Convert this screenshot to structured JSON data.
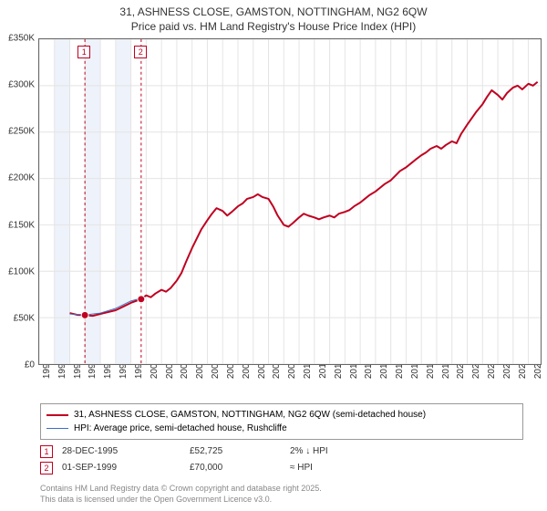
{
  "title": {
    "line1": "31, ASHNESS CLOSE, GAMSTON, NOTTINGHAM, NG2 6QW",
    "line2": "Price paid vs. HM Land Registry's House Price Index (HPI)",
    "fontsize": 12,
    "color": "#333333"
  },
  "chart": {
    "type": "line",
    "background_color": "#ffffff",
    "border_color": "#666666",
    "grid_color": "#e4e4e4",
    "shaded_band_color": "#eef2fa",
    "xlim": [
      1993,
      2025.8
    ],
    "ylim": [
      0,
      350
    ],
    "yticks": [
      0,
      50,
      100,
      150,
      200,
      250,
      300,
      350
    ],
    "ytick_labels": [
      "£0",
      "£50K",
      "£100K",
      "£150K",
      "£200K",
      "£250K",
      "£300K",
      "£350K"
    ],
    "ytick_fontsize": 10,
    "xticks": [
      1993,
      1994,
      1995,
      1996,
      1997,
      1998,
      1999,
      2000,
      2001,
      2002,
      2003,
      2004,
      2005,
      2006,
      2007,
      2008,
      2009,
      2010,
      2011,
      2012,
      2013,
      2014,
      2015,
      2016,
      2017,
      2018,
      2019,
      2020,
      2021,
      2022,
      2023,
      2024,
      2025
    ],
    "xtick_fontsize": 10,
    "xtick_rotation": -90,
    "shaded_bands": [
      [
        1994,
        1995
      ],
      [
        1996,
        1997
      ],
      [
        1998,
        1999
      ]
    ],
    "markers": [
      {
        "label": "1",
        "x": 1995.99,
        "y": 52.725
      },
      {
        "label": "2",
        "x": 1999.67,
        "y": 70.0
      }
    ],
    "marker_box_color": "#c00020",
    "series": [
      {
        "name": "price_paid",
        "label": "31, ASHNESS CLOSE, GAMSTON, NOTTINGHAM, NG2 6QW (semi-detached house)",
        "color": "#c00020",
        "line_width": 2,
        "data": [
          [
            1995.0,
            55
          ],
          [
            1995.5,
            53
          ],
          [
            1995.99,
            52.7
          ],
          [
            1996.5,
            52
          ],
          [
            1997.0,
            54
          ],
          [
            1997.5,
            56
          ],
          [
            1998.0,
            58
          ],
          [
            1998.5,
            62
          ],
          [
            1999.0,
            66
          ],
          [
            1999.67,
            70
          ],
          [
            2000.0,
            74
          ],
          [
            2000.3,
            72
          ],
          [
            2000.6,
            76
          ],
          [
            2001.0,
            80
          ],
          [
            2001.3,
            78
          ],
          [
            2001.6,
            82
          ],
          [
            2002.0,
            90
          ],
          [
            2002.3,
            98
          ],
          [
            2002.6,
            110
          ],
          [
            2003.0,
            125
          ],
          [
            2003.3,
            135
          ],
          [
            2003.6,
            145
          ],
          [
            2004.0,
            155
          ],
          [
            2004.3,
            162
          ],
          [
            2004.6,
            168
          ],
          [
            2005.0,
            165
          ],
          [
            2005.3,
            160
          ],
          [
            2005.6,
            164
          ],
          [
            2006.0,
            170
          ],
          [
            2006.3,
            173
          ],
          [
            2006.6,
            178
          ],
          [
            2007.0,
            180
          ],
          [
            2007.3,
            183
          ],
          [
            2007.6,
            180
          ],
          [
            2008.0,
            178
          ],
          [
            2008.3,
            170
          ],
          [
            2008.6,
            160
          ],
          [
            2009.0,
            150
          ],
          [
            2009.3,
            148
          ],
          [
            2009.6,
            152
          ],
          [
            2010.0,
            158
          ],
          [
            2010.3,
            162
          ],
          [
            2010.6,
            160
          ],
          [
            2011.0,
            158
          ],
          [
            2011.3,
            156
          ],
          [
            2011.6,
            158
          ],
          [
            2012.0,
            160
          ],
          [
            2012.3,
            158
          ],
          [
            2012.6,
            162
          ],
          [
            2013.0,
            164
          ],
          [
            2013.3,
            166
          ],
          [
            2013.6,
            170
          ],
          [
            2014.0,
            174
          ],
          [
            2014.3,
            178
          ],
          [
            2014.6,
            182
          ],
          [
            2015.0,
            186
          ],
          [
            2015.3,
            190
          ],
          [
            2015.6,
            194
          ],
          [
            2016.0,
            198
          ],
          [
            2016.3,
            203
          ],
          [
            2016.6,
            208
          ],
          [
            2017.0,
            212
          ],
          [
            2017.3,
            216
          ],
          [
            2017.6,
            220
          ],
          [
            2018.0,
            225
          ],
          [
            2018.3,
            228
          ],
          [
            2018.6,
            232
          ],
          [
            2019.0,
            235
          ],
          [
            2019.3,
            232
          ],
          [
            2019.6,
            236
          ],
          [
            2020.0,
            240
          ],
          [
            2020.3,
            238
          ],
          [
            2020.6,
            248
          ],
          [
            2021.0,
            258
          ],
          [
            2021.3,
            265
          ],
          [
            2021.6,
            272
          ],
          [
            2022.0,
            280
          ],
          [
            2022.3,
            288
          ],
          [
            2022.6,
            295
          ],
          [
            2023.0,
            290
          ],
          [
            2023.3,
            285
          ],
          [
            2023.6,
            292
          ],
          [
            2024.0,
            298
          ],
          [
            2024.3,
            300
          ],
          [
            2024.6,
            296
          ],
          [
            2025.0,
            302
          ],
          [
            2025.3,
            300
          ],
          [
            2025.6,
            304
          ]
        ]
      },
      {
        "name": "hpi",
        "label": "HPI: Average price, semi-detached house, Rushcliffe",
        "color": "#3b6fc4",
        "line_width": 1,
        "data": [
          [
            1995.0,
            54
          ],
          [
            1996.0,
            53
          ],
          [
            1997.0,
            55
          ],
          [
            1998.0,
            60
          ],
          [
            1999.0,
            68
          ],
          [
            1999.67,
            71
          ]
        ]
      }
    ]
  },
  "legend": {
    "border_color": "#999999",
    "fontsize": 10
  },
  "transactions": [
    {
      "marker": "1",
      "date": "28-DEC-1995",
      "price": "£52,725",
      "hpi_delta": "2% ↓ HPI"
    },
    {
      "marker": "2",
      "date": "01-SEP-1999",
      "price": "£70,000",
      "hpi_delta": "≈ HPI"
    }
  ],
  "footer": {
    "line1": "Contains HM Land Registry data © Crown copyright and database right 2025.",
    "line2": "This data is licensed under the Open Government Licence v3.0.",
    "color": "#888888",
    "fontsize": 9
  }
}
